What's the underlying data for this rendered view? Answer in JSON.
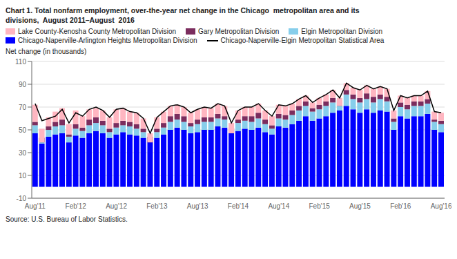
{
  "chart_data": {
    "type": "bar",
    "title": "Chart 1. Total nonfarm employment, over-the-year net change in the Chicago  metropolitan area and its",
    "subtitle": "divisions,  August 2011–August  2016",
    "ylabel": "Net change (in thousands)",
    "annotations": [
      "Source: U.S. Bureau of Labor Statistics."
    ],
    "stacked": true,
    "grid": true,
    "legend": "upper left",
    "ylim": [
      -10,
      110
    ],
    "yticks": [
      -10,
      10,
      30,
      50,
      70,
      90,
      110
    ],
    "categories": [
      "Aug'11",
      null,
      null,
      null,
      null,
      null,
      "Feb'12",
      null,
      null,
      null,
      null,
      null,
      "Aug'12",
      null,
      null,
      null,
      null,
      null,
      "Feb'13",
      null,
      null,
      null,
      null,
      null,
      "Aug'13",
      null,
      null,
      null,
      null,
      null,
      "Feb'14",
      null,
      null,
      null,
      null,
      null,
      "Aug'14",
      null,
      null,
      null,
      null,
      null,
      "Feb'15",
      null,
      null,
      null,
      null,
      null,
      "Aug'15",
      null,
      null,
      null,
      null,
      null,
      "Feb'16",
      null,
      null,
      null,
      null,
      null,
      "Aug'16"
    ],
    "series": [
      {
        "name": "Chicago-Naperville-Arlington Heights Metropolitan Division",
        "type": "bar",
        "color": "#0000FF",
        "values": [
          47,
          38,
          44,
          46,
          47,
          39,
          45,
          43,
          47,
          49,
          47,
          43,
          46,
          48,
          46,
          45,
          43,
          40,
          43,
          46,
          50,
          52,
          50,
          47,
          48,
          50,
          50,
          53,
          52,
          47,
          49,
          51,
          50,
          52,
          48,
          46,
          53,
          52,
          55,
          58,
          62,
          58,
          60,
          62,
          65,
          67,
          71,
          68,
          65,
          68,
          65,
          67,
          66,
          50,
          62,
          60,
          62,
          62,
          64,
          50,
          48
        ]
      },
      {
        "name": "Elgin Metropolitan Division",
        "type": "bar",
        "color": "#87CEEB",
        "values": [
          7,
          5,
          6,
          7,
          7,
          5,
          6,
          6,
          7,
          7,
          7,
          5,
          6,
          6,
          7,
          6,
          5,
          4,
          5,
          6,
          7,
          7,
          7,
          6,
          7,
          7,
          7,
          7,
          7,
          5,
          7,
          7,
          7,
          8,
          7,
          5,
          7,
          7,
          8,
          9,
          9,
          8,
          8,
          9,
          9,
          9,
          10,
          9,
          9,
          9,
          9,
          10,
          9,
          7,
          8,
          8,
          9,
          9,
          9,
          7,
          7
        ]
      },
      {
        "name": "Gary Metropolitan Division",
        "type": "bar",
        "color": "#7B2D5E",
        "values": [
          3,
          -4,
          3,
          4,
          5,
          2,
          4,
          3,
          5,
          5,
          4,
          3,
          4,
          4,
          4,
          4,
          3,
          -5,
          3,
          4,
          5,
          5,
          5,
          3,
          4,
          4,
          4,
          4,
          3,
          -5,
          3,
          4,
          5,
          5,
          4,
          3,
          4,
          4,
          4,
          4,
          4,
          3,
          4,
          4,
          4,
          -5,
          4,
          4,
          4,
          5,
          5,
          4,
          4,
          3,
          4,
          4,
          4,
          4,
          4,
          2,
          3
        ]
      },
      {
        "name": "Lake County-Kenosha County Metropolitan Division",
        "type": "bar",
        "color": "#FFB6C1",
        "values": [
          15,
          12,
          8,
          9,
          10,
          9,
          12,
          10,
          9,
          8,
          9,
          10,
          12,
          11,
          9,
          10,
          9,
          8,
          10,
          10,
          9,
          8,
          8,
          9,
          9,
          9,
          8,
          9,
          9,
          9,
          8,
          8,
          8,
          8,
          8,
          8,
          8,
          8,
          6,
          6,
          5,
          5,
          6,
          6,
          7,
          7,
          6,
          6,
          7,
          7,
          7,
          7,
          7,
          7,
          6,
          6,
          5,
          5,
          7,
          7,
          7
        ]
      },
      {
        "name": "Chicago-Naperville-Elgin Metropolitan Statistical Area",
        "type": "line",
        "color": "#000000",
        "values": [
          73,
          58,
          60,
          62,
          68,
          56,
          65,
          62,
          68,
          70,
          67,
          61,
          68,
          69,
          66,
          65,
          60,
          47,
          61,
          66,
          71,
          72,
          70,
          65,
          68,
          70,
          69,
          73,
          71,
          56,
          67,
          70,
          70,
          73,
          67,
          62,
          72,
          71,
          73,
          77,
          80,
          74,
          78,
          81,
          85,
          78,
          91,
          87,
          85,
          89,
          86,
          88,
          86,
          67,
          80,
          78,
          80,
          80,
          84,
          66,
          65
        ]
      }
    ]
  }
}
